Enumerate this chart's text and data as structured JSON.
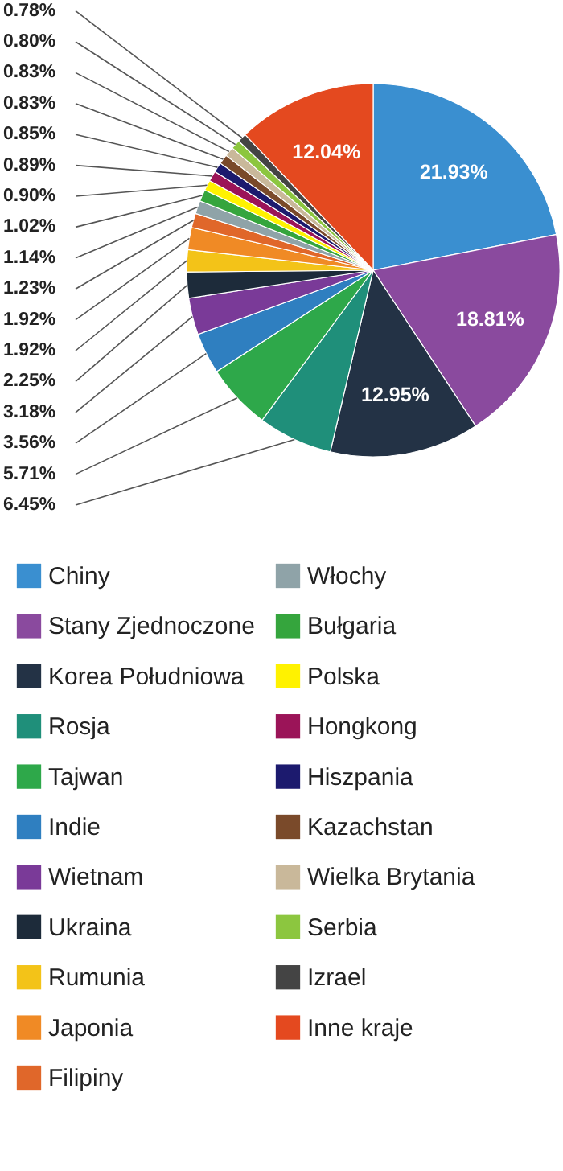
{
  "chart_data": {
    "type": "pie",
    "legend": "bottom",
    "categories": [
      "Chiny",
      "Stany Zjednoczone",
      "Korea Południowa",
      "Rosja",
      "Tajwan",
      "Indie",
      "Wietnam",
      "Ukraina",
      "Rumunia",
      "Japonia",
      "Filipiny",
      "Włochy",
      "Bułgaria",
      "Polska",
      "Hongkong",
      "Hiszpania",
      "Kazachstan",
      "Wielka Brytania",
      "Serbia",
      "Izrael",
      "Inne kraje"
    ],
    "values": [
      21.93,
      18.81,
      12.95,
      6.45,
      5.71,
      3.56,
      3.18,
      2.25,
      1.92,
      1.92,
      1.23,
      1.14,
      1.02,
      0.9,
      0.89,
      0.85,
      0.83,
      0.83,
      0.8,
      0.78,
      12.04
    ],
    "value_labels": [
      "21.93%",
      "18.81%",
      "12.95%",
      "6.45%",
      "5.71%",
      "3.56%",
      "3.18%",
      "2.25%",
      "1.92%",
      "1.92%",
      "1.23%",
      "1.14%",
      "1.02%",
      "0.90%",
      "0.89%",
      "0.85%",
      "0.83%",
      "0.83%",
      "0.80%",
      "0.78%",
      "12.04%"
    ],
    "colors": [
      "#3a8fd0",
      "#8a4a9e",
      "#233245",
      "#1f8f7a",
      "#2ea84a",
      "#2f7fc0",
      "#7a3a98",
      "#1d2b3a",
      "#f3c318",
      "#f08a25",
      "#e0672a",
      "#8fa3a8",
      "#35a53d",
      "#fff200",
      "#9b1458",
      "#1c1a6e",
      "#7a4a2a",
      "#c9b89a",
      "#8cc63f",
      "#444444",
      "#e4491f"
    ]
  }
}
